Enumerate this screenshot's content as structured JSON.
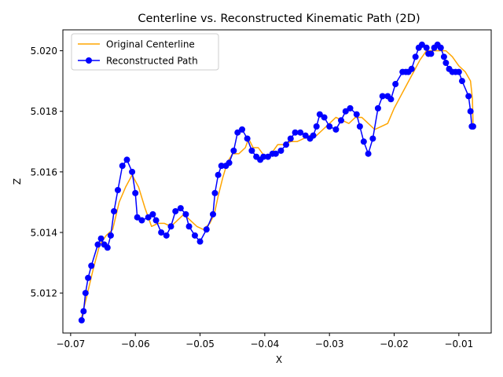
{
  "chart_data": {
    "type": "line",
    "title": "Centerline vs. Reconstructed Kinematic Path (2D)",
    "xlabel": "X",
    "ylabel": "Z",
    "xlim": [
      -0.0712,
      -0.005
    ],
    "ylim": [
      5.01068,
      5.02069
    ],
    "xticks": [
      -0.07,
      -0.06,
      -0.05,
      -0.04,
      -0.03,
      -0.02,
      -0.01
    ],
    "xtick_labels": [
      "−0.07",
      "−0.06",
      "−0.05",
      "−0.04",
      "−0.03",
      "−0.02",
      "−0.01"
    ],
    "yticks": [
      5.012,
      5.014,
      5.016,
      5.018,
      5.02
    ],
    "ytick_labels": [
      "5.012",
      "5.014",
      "5.016",
      "5.018",
      "5.020"
    ],
    "grid": false,
    "legend_position": "top-left",
    "series": [
      {
        "name": "Original Centerline",
        "color": "#ffa500",
        "marker": "none",
        "x": [
          -0.0683,
          -0.0675,
          -0.0665,
          -0.0655,
          -0.0645,
          -0.0635,
          -0.0625,
          -0.0615,
          -0.0605,
          -0.0595,
          -0.0585,
          -0.0575,
          -0.0565,
          -0.0555,
          -0.0545,
          -0.0535,
          -0.0525,
          -0.0515,
          -0.0505,
          -0.0495,
          -0.0485,
          -0.0478,
          -0.0472,
          -0.0465,
          -0.0458,
          -0.045,
          -0.044,
          -0.043,
          -0.0425,
          -0.0418,
          -0.041,
          -0.04,
          -0.039,
          -0.038,
          -0.037,
          -0.036,
          -0.035,
          -0.034,
          -0.033,
          -0.032,
          -0.031,
          -0.03,
          -0.029,
          -0.028,
          -0.027,
          -0.026,
          -0.025,
          -0.024,
          -0.023,
          -0.022,
          -0.021,
          -0.02,
          -0.019,
          -0.018,
          -0.017,
          -0.016,
          -0.015,
          -0.014,
          -0.013,
          -0.012,
          -0.011,
          -0.01,
          -0.009,
          -0.0082,
          -0.0079,
          -0.0078
        ],
        "y": [
          5.0112,
          5.0119,
          5.0128,
          5.0136,
          5.0139,
          5.0141,
          5.015,
          5.0155,
          5.0159,
          5.0155,
          5.0148,
          5.0142,
          5.0143,
          5.0143,
          5.0142,
          5.0144,
          5.0146,
          5.0144,
          5.0142,
          5.0141,
          5.0143,
          5.0146,
          5.0152,
          5.0158,
          5.0163,
          5.0166,
          5.0166,
          5.0168,
          5.0171,
          5.0168,
          5.0168,
          5.0165,
          5.0166,
          5.0169,
          5.0169,
          5.017,
          5.017,
          5.0171,
          5.0172,
          5.0172,
          5.0174,
          5.0176,
          5.0178,
          5.0177,
          5.0176,
          5.0178,
          5.0178,
          5.0176,
          5.0174,
          5.0175,
          5.0176,
          5.0181,
          5.0185,
          5.0189,
          5.0193,
          5.0197,
          5.02,
          5.02,
          5.02,
          5.02,
          5.0198,
          5.0195,
          5.0193,
          5.019,
          5.0184,
          5.0175
        ]
      },
      {
        "name": "Reconstructed Path",
        "color": "#0000ff",
        "marker": "o",
        "x": [
          -0.0683,
          -0.068,
          -0.0677,
          -0.0673,
          -0.0668,
          -0.0658,
          -0.0653,
          -0.0648,
          -0.0643,
          -0.0638,
          -0.0633,
          -0.0627,
          -0.062,
          -0.0613,
          -0.0605,
          -0.06,
          -0.0597,
          -0.059,
          -0.058,
          -0.0573,
          -0.0568,
          -0.056,
          -0.0552,
          -0.0545,
          -0.0538,
          -0.053,
          -0.0522,
          -0.0517,
          -0.0508,
          -0.05,
          -0.049,
          -0.048,
          -0.0477,
          -0.0472,
          -0.0467,
          -0.046,
          -0.0455,
          -0.0448,
          -0.0442,
          -0.0435,
          -0.0427,
          -0.042,
          -0.0413,
          -0.0407,
          -0.0402,
          -0.0395,
          -0.0388,
          -0.0383,
          -0.0375,
          -0.0367,
          -0.036,
          -0.0353,
          -0.0345,
          -0.0337,
          -0.033,
          -0.0325,
          -0.032,
          -0.0315,
          -0.0308,
          -0.03,
          -0.029,
          -0.0282,
          -0.0275,
          -0.0268,
          -0.0258,
          -0.0253,
          -0.0247,
          -0.024,
          -0.0233,
          -0.0225,
          -0.0218,
          -0.021,
          -0.0205,
          -0.0198,
          -0.0187,
          -0.0182,
          -0.0178,
          -0.0173,
          -0.0167,
          -0.0162,
          -0.0157,
          -0.015,
          -0.0147,
          -0.0143,
          -0.0138,
          -0.0133,
          -0.0128,
          -0.0123,
          -0.012,
          -0.0115,
          -0.011,
          -0.0105,
          -0.01,
          -0.0095,
          -0.0085,
          -0.0082,
          -0.008,
          -0.0079,
          -0.0078
        ],
        "y": [
          5.0111,
          5.0114,
          5.012,
          5.0125,
          5.0129,
          5.0136,
          5.0138,
          5.0136,
          5.0135,
          5.0139,
          5.0147,
          5.0154,
          5.0162,
          5.0164,
          5.016,
          5.0153,
          5.0145,
          5.0144,
          5.0145,
          5.0146,
          5.0144,
          5.014,
          5.0139,
          5.0142,
          5.0147,
          5.0148,
          5.0146,
          5.0142,
          5.0139,
          5.0137,
          5.0141,
          5.0146,
          5.0153,
          5.0159,
          5.0162,
          5.0162,
          5.0163,
          5.0167,
          5.0173,
          5.0174,
          5.0171,
          5.0167,
          5.0165,
          5.0164,
          5.0165,
          5.0165,
          5.0166,
          5.0166,
          5.0167,
          5.0169,
          5.0171,
          5.0173,
          5.0173,
          5.0172,
          5.0171,
          5.0172,
          5.0175,
          5.0179,
          5.0178,
          5.0175,
          5.0174,
          5.0177,
          5.018,
          5.0181,
          5.0179,
          5.0175,
          5.017,
          5.0166,
          5.0171,
          5.0181,
          5.0185,
          5.0185,
          5.0184,
          5.0189,
          5.0193,
          5.0193,
          5.0193,
          5.0194,
          5.0198,
          5.0201,
          5.0202,
          5.0201,
          5.0199,
          5.0199,
          5.0201,
          5.0202,
          5.0201,
          5.0198,
          5.0196,
          5.0194,
          5.0193,
          5.0193,
          5.0193,
          5.019,
          5.0185,
          5.018,
          5.0175,
          5.0175,
          5.0175
        ]
      }
    ]
  }
}
